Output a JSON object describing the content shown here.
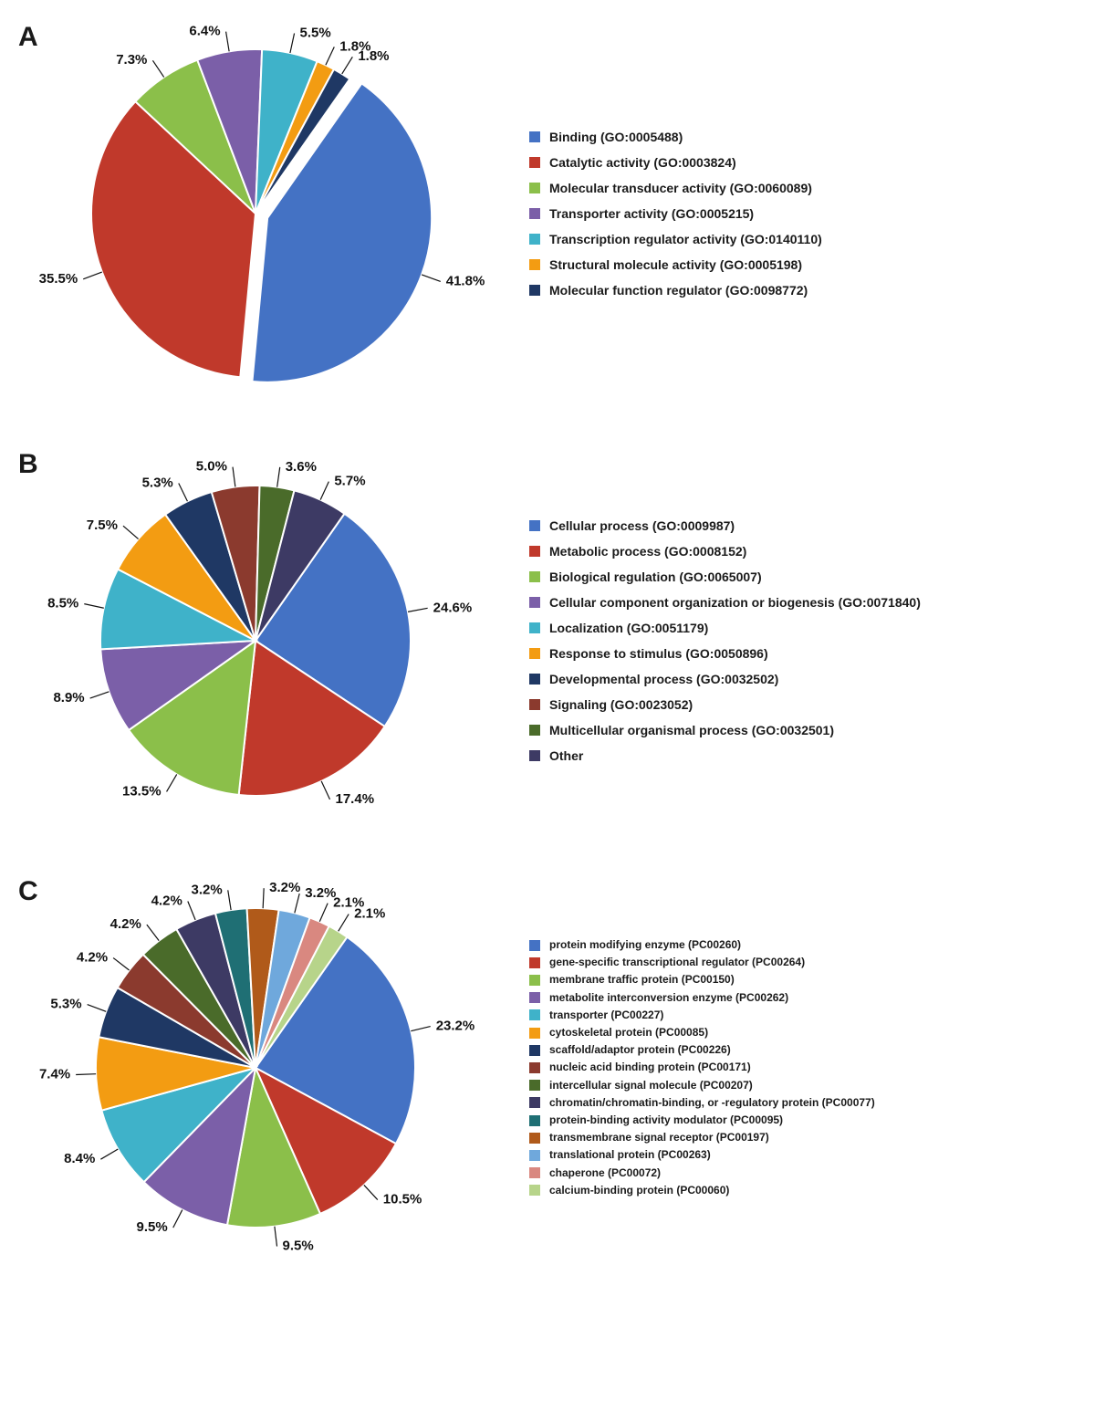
{
  "panels": [
    {
      "id": "A",
      "label": "A",
      "radius": 180,
      "explode_first": 14,
      "legend_size": "normal",
      "slices": [
        {
          "label": "Binding (GO:0005488)",
          "value": 41.8,
          "color": "#4472c4"
        },
        {
          "label": "Catalytic activity (GO:0003824)",
          "value": 35.5,
          "color": "#c0392b"
        },
        {
          "label": "Molecular transducer activity (GO:0060089)",
          "value": 7.3,
          "color": "#8bbf4a"
        },
        {
          "label": "Transporter activity (GO:0005215)",
          "value": 6.4,
          "color": "#7b5fa8"
        },
        {
          "label": "Transcription regulator activity (GO:0140110)",
          "value": 5.5,
          "color": "#3fb2c9"
        },
        {
          "label": "Structural molecule activity (GO:0005198)",
          "value": 1.8,
          "color": "#f39c12"
        },
        {
          "label": "Molecular function regulator (GO:0098772)",
          "value": 1.8,
          "color": "#1f3864"
        }
      ]
    },
    {
      "id": "B",
      "label": "B",
      "radius": 170,
      "explode_first": 0,
      "legend_size": "normal",
      "slices": [
        {
          "label": "Cellular process (GO:0009987)",
          "value": 24.6,
          "color": "#4472c4"
        },
        {
          "label": "Metabolic process (GO:0008152)",
          "value": 17.4,
          "color": "#c0392b"
        },
        {
          "label": "Biological regulation (GO:0065007)",
          "value": 13.5,
          "color": "#8bbf4a"
        },
        {
          "label": "Cellular component organization or biogenesis (GO:0071840)",
          "value": 8.9,
          "color": "#7b5fa8"
        },
        {
          "label": "Localization (GO:0051179)",
          "value": 8.5,
          "color": "#3fb2c9"
        },
        {
          "label": "Response to stimulus (GO:0050896)",
          "value": 7.5,
          "color": "#f39c12"
        },
        {
          "label": "Developmental process (GO:0032502)",
          "value": 5.3,
          "color": "#1f3864"
        },
        {
          "label": "Signaling (GO:0023052)",
          "value": 5.0,
          "color": "#8b3a2e"
        },
        {
          "label": "Multicellular organismal process (GO:0032501)",
          "value": 3.6,
          "color": "#4a6b2a"
        },
        {
          "label": "Other",
          "value": 5.7,
          "color": "#3d3a64"
        }
      ]
    },
    {
      "id": "C",
      "label": "C",
      "radius": 175,
      "explode_first": 0,
      "legend_size": "small",
      "slices": [
        {
          "label": "protein modifying enzyme (PC00260)",
          "value": 23.2,
          "color": "#4472c4"
        },
        {
          "label": "gene-specific transcriptional regulator (PC00264)",
          "value": 10.5,
          "color": "#c0392b"
        },
        {
          "label": "membrane traffic protein (PC00150)",
          "value": 9.5,
          "color": "#8bbf4a"
        },
        {
          "label": "metabolite interconversion enzyme (PC00262)",
          "value": 9.5,
          "color": "#7b5fa8"
        },
        {
          "label": "transporter (PC00227)",
          "value": 8.4,
          "color": "#3fb2c9"
        },
        {
          "label": "cytoskeletal protein (PC00085)",
          "value": 7.4,
          "color": "#f39c12"
        },
        {
          "label": "scaffold/adaptor protein (PC00226)",
          "value": 5.3,
          "color": "#1f3864"
        },
        {
          "label": "nucleic acid binding protein (PC00171)",
          "value": 4.2,
          "color": "#8b3a2e"
        },
        {
          "label": "intercellular signal molecule (PC00207)",
          "value": 4.2,
          "color": "#4a6b2a"
        },
        {
          "label": "chromatin/chromatin-binding, or -regulatory protein (PC00077)",
          "value": 4.2,
          "color": "#3d3a64"
        },
        {
          "label": "protein-binding activity modulator (PC00095)",
          "value": 3.2,
          "color": "#1f6f74"
        },
        {
          "label": "transmembrane signal receptor (PC00197)",
          "value": 3.2,
          "color": "#b05a1a"
        },
        {
          "label": "translational protein (PC00263)",
          "value": 3.2,
          "color": "#6fa8dc"
        },
        {
          "label": "chaperone (PC00072)",
          "value": 2.1,
          "color": "#d98880"
        },
        {
          "label": "calcium-binding protein (PC00060)",
          "value": 2.1,
          "color": "#b7d48a"
        }
      ]
    }
  ],
  "leader_length": 22,
  "label_gap": 6,
  "start_angle_deg": 35,
  "background_color": "#ffffff"
}
